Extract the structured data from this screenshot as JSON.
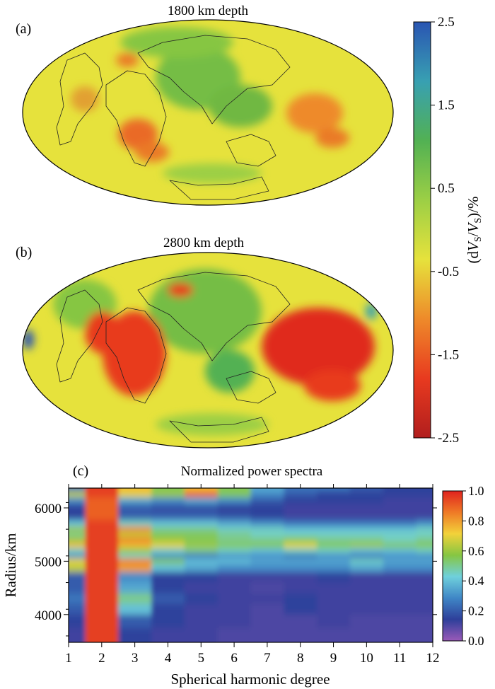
{
  "figure": {
    "panel_a": {
      "label": "(a)",
      "title": "1800 km depth"
    },
    "panel_b": {
      "label": "(b)",
      "title": "2800 km depth"
    },
    "panel_c": {
      "label": "(c)",
      "title": "Normalized power spectra"
    }
  },
  "chart_data": [
    {
      "type": "heatmap",
      "name": "velocity-anomaly-maps",
      "projection": "Hammer (global)",
      "maps": [
        {
          "panel": "(a)",
          "title": "1800 km depth"
        },
        {
          "panel": "(b)",
          "title": "2800 km depth"
        }
      ],
      "colorbar": {
        "label_parts": [
          "(d",
          "V",
          "S",
          "/",
          "V",
          "S",
          ")/%"
        ],
        "range": [
          -2.5,
          2.5
        ],
        "ticks": [
          "2.5",
          "1.5",
          "0.5",
          "-0.5",
          "-1.5",
          "-2.5"
        ],
        "colors": [
          "#b11e1e",
          "#e83a1f",
          "#ee8a2a",
          "#e6e23c",
          "#9ccf45",
          "#52b153",
          "#38a0b2",
          "#2a55b2"
        ]
      }
    },
    {
      "type": "heatmap",
      "name": "normalized-power-spectra",
      "title": "Normalized power spectra",
      "xlabel": "Spherical harmonic degree",
      "ylabel": "Radius/km",
      "x_ticks": [
        "1",
        "2",
        "3",
        "4",
        "5",
        "6",
        "7",
        "8",
        "9",
        "10",
        "11",
        "12"
      ],
      "y_ticks": [
        "6000",
        "5000",
        "4000"
      ],
      "xlim": [
        1,
        12
      ],
      "ylim": [
        3480,
        6371
      ],
      "degrees": [
        1,
        2,
        3,
        4,
        5,
        6,
        7,
        8,
        9,
        10,
        11,
        12
      ],
      "rows": [
        {
          "radius": 6371,
          "values": [
            0.25,
            0.95,
            0.75,
            0.55,
            0.75,
            0.55,
            0.35,
            0.25,
            0.25,
            0.2,
            0.15,
            0.15
          ]
        },
        {
          "radius": 6250,
          "values": [
            0.65,
            0.95,
            0.7,
            0.6,
            0.9,
            0.55,
            0.3,
            0.2,
            0.15,
            0.15,
            0.15,
            0.15
          ]
        },
        {
          "radius": 6150,
          "values": [
            0.3,
            0.9,
            0.35,
            0.3,
            0.35,
            0.3,
            0.2,
            0.15,
            0.15,
            0.15,
            0.12,
            0.12
          ]
        },
        {
          "radius": 6000,
          "values": [
            0.15,
            0.9,
            0.2,
            0.18,
            0.18,
            0.15,
            0.15,
            0.12,
            0.12,
            0.12,
            0.12,
            0.12
          ]
        },
        {
          "radius": 5850,
          "values": [
            0.15,
            0.9,
            0.2,
            0.2,
            0.2,
            0.18,
            0.15,
            0.12,
            0.12,
            0.12,
            0.12,
            0.12
          ]
        },
        {
          "radius": 5700,
          "values": [
            0.4,
            0.95,
            0.45,
            0.4,
            0.4,
            0.35,
            0.3,
            0.25,
            0.25,
            0.25,
            0.25,
            0.3
          ]
        },
        {
          "radius": 5600,
          "values": [
            0.6,
            0.95,
            0.85,
            0.5,
            0.5,
            0.45,
            0.45,
            0.4,
            0.4,
            0.4,
            0.4,
            0.45
          ]
        },
        {
          "radius": 5500,
          "values": [
            0.5,
            0.95,
            0.65,
            0.55,
            0.55,
            0.5,
            0.45,
            0.45,
            0.45,
            0.45,
            0.45,
            0.45
          ]
        },
        {
          "radius": 5400,
          "values": [
            0.6,
            0.95,
            0.85,
            0.6,
            0.55,
            0.5,
            0.5,
            0.55,
            0.5,
            0.5,
            0.45,
            0.5
          ]
        },
        {
          "radius": 5300,
          "values": [
            0.75,
            0.95,
            0.75,
            0.7,
            0.6,
            0.55,
            0.55,
            0.7,
            0.55,
            0.6,
            0.55,
            0.55
          ]
        },
        {
          "radius": 5200,
          "values": [
            0.45,
            0.95,
            0.6,
            0.45,
            0.5,
            0.45,
            0.4,
            0.45,
            0.45,
            0.4,
            0.4,
            0.45
          ]
        },
        {
          "radius": 5100,
          "values": [
            0.3,
            0.95,
            0.45,
            0.3,
            0.25,
            0.3,
            0.3,
            0.25,
            0.3,
            0.25,
            0.3,
            0.3
          ]
        },
        {
          "radius": 5000,
          "values": [
            0.7,
            0.95,
            0.85,
            0.55,
            0.4,
            0.4,
            0.35,
            0.35,
            0.35,
            0.45,
            0.35,
            0.35
          ]
        },
        {
          "radius": 4900,
          "values": [
            0.65,
            0.95,
            0.8,
            0.4,
            0.35,
            0.3,
            0.3,
            0.3,
            0.3,
            0.35,
            0.3,
            0.3
          ]
        },
        {
          "radius": 4700,
          "values": [
            0.2,
            0.95,
            0.3,
            0.15,
            0.15,
            0.12,
            0.12,
            0.12,
            0.15,
            0.12,
            0.12,
            0.12
          ]
        },
        {
          "radius": 4500,
          "values": [
            0.2,
            0.95,
            0.35,
            0.15,
            0.12,
            0.12,
            0.1,
            0.12,
            0.12,
            0.12,
            0.12,
            0.12
          ]
        },
        {
          "radius": 4300,
          "values": [
            0.25,
            0.95,
            0.5,
            0.2,
            0.15,
            0.12,
            0.12,
            0.15,
            0.12,
            0.12,
            0.12,
            0.12
          ]
        },
        {
          "radius": 4100,
          "values": [
            0.2,
            0.95,
            0.4,
            0.15,
            0.12,
            0.12,
            0.1,
            0.15,
            0.12,
            0.12,
            0.12,
            0.12
          ]
        },
        {
          "radius": 3900,
          "values": [
            0.15,
            0.95,
            0.2,
            0.15,
            0.12,
            0.12,
            0.1,
            0.1,
            0.12,
            0.1,
            0.1,
            0.1
          ]
        },
        {
          "radius": 3600,
          "values": [
            0.12,
            0.95,
            0.15,
            0.12,
            0.12,
            0.1,
            0.1,
            0.1,
            0.1,
            0.1,
            0.1,
            0.1
          ]
        }
      ],
      "colorbar": {
        "range": [
          0.0,
          1.0
        ],
        "ticks": [
          "1.0",
          "0.8",
          "0.6",
          "0.4",
          "0.2",
          "0.0"
        ],
        "colors": [
          "#9a5ab8",
          "#2e3f9a",
          "#3f86c6",
          "#6fd0dc",
          "#86c642",
          "#f2d23a",
          "#ef7a26",
          "#e0231e"
        ]
      }
    }
  ]
}
